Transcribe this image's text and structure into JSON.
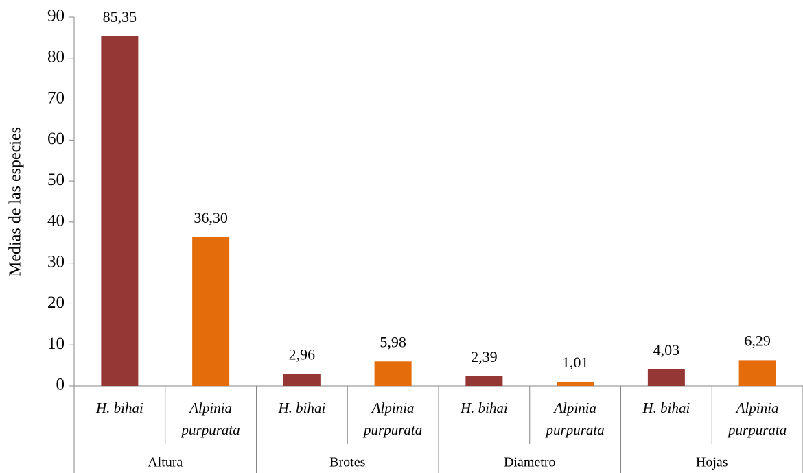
{
  "chart_data": {
    "type": "bar",
    "y_label": "Medias de las especies",
    "categories": [
      "Altura",
      "Brotes",
      "Diametro",
      "Hojas"
    ],
    "series": [
      {
        "name": "H. bihai",
        "color": "#953735",
        "values": [
          85.35,
          2.96,
          2.39,
          4.03
        ],
        "value_labels": [
          "85,35",
          "2,96",
          "2,39",
          "4,03"
        ]
      },
      {
        "name": "Alpinia purpurata",
        "color": "#e46c0a",
        "values": [
          36.3,
          5.98,
          1.01,
          6.29
        ],
        "value_labels": [
          "36,30",
          "5,98",
          "1,01",
          "6,29"
        ]
      }
    ],
    "ylim": [
      0,
      90
    ],
    "yticks": [
      0,
      10,
      20,
      30,
      40,
      50,
      60,
      70,
      80,
      90
    ]
  }
}
